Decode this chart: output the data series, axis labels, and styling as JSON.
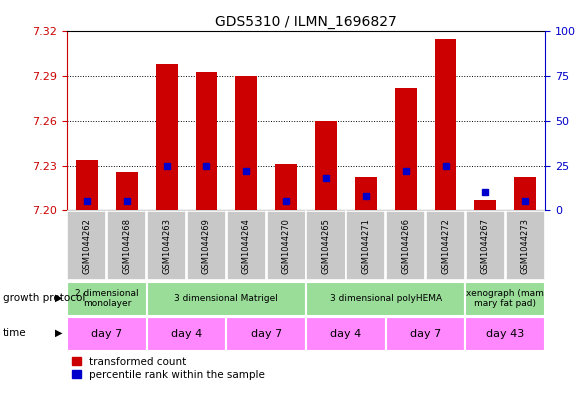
{
  "title": "GDS5310 / ILMN_1696827",
  "samples": [
    "GSM1044262",
    "GSM1044268",
    "GSM1044263",
    "GSM1044269",
    "GSM1044264",
    "GSM1044270",
    "GSM1044265",
    "GSM1044271",
    "GSM1044266",
    "GSM1044272",
    "GSM1044267",
    "GSM1044273"
  ],
  "transformed_count": [
    7.234,
    7.226,
    7.298,
    7.293,
    7.29,
    7.231,
    7.26,
    7.222,
    7.282,
    7.315,
    7.207,
    7.222
  ],
  "percentile_rank": [
    5,
    5,
    25,
    25,
    22,
    5,
    18,
    8,
    22,
    25,
    10,
    5
  ],
  "ylim_left": [
    7.2,
    7.32
  ],
  "ylim_right": [
    0,
    100
  ],
  "yticks_left": [
    7.2,
    7.23,
    7.26,
    7.29,
    7.32
  ],
  "yticks_right": [
    0,
    25,
    50,
    75,
    100
  ],
  "left_color": "#cc0000",
  "right_color": "#0000cc",
  "bar_base": 7.2,
  "growth_protocol_groups": [
    {
      "label": "2 dimensional\nmonolayer",
      "start": 0,
      "end": 2
    },
    {
      "label": "3 dimensional Matrigel",
      "start": 2,
      "end": 6
    },
    {
      "label": "3 dimensional polyHEMA",
      "start": 6,
      "end": 10
    },
    {
      "label": "xenograph (mam\nmary fat pad)",
      "start": 10,
      "end": 12
    }
  ],
  "time_groups": [
    {
      "label": "day 7",
      "start": 0,
      "end": 2
    },
    {
      "label": "day 4",
      "start": 2,
      "end": 4
    },
    {
      "label": "day 7",
      "start": 4,
      "end": 6
    },
    {
      "label": "day 4",
      "start": 6,
      "end": 8
    },
    {
      "label": "day 7",
      "start": 8,
      "end": 10
    },
    {
      "label": "day 43",
      "start": 10,
      "end": 12
    }
  ],
  "sample_bg_color": "#c8c8c8",
  "gp_color": "#99dd99",
  "time_color": "#ff88ff",
  "bar_width": 0.55,
  "blue_marker_size": 5,
  "legend_red": "transformed count",
  "legend_blue": "percentile rank within the sample"
}
